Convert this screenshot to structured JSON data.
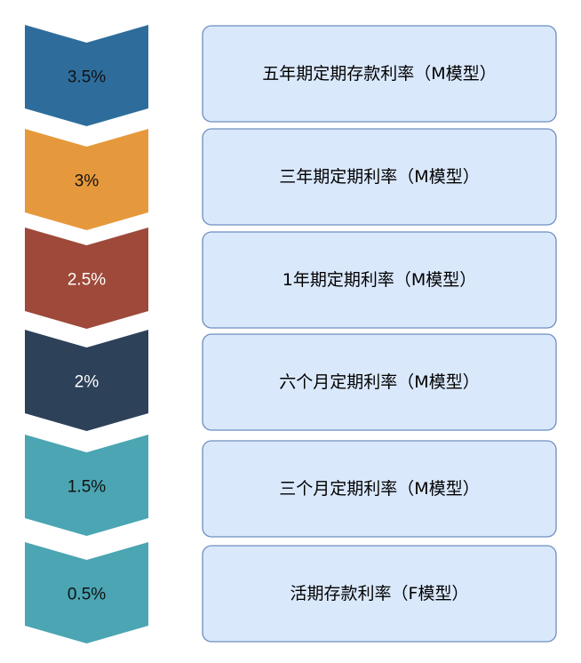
{
  "steps": [
    {
      "rate": "3.5%",
      "label": "五年期定期存款利率（M模型）",
      "color": "#2e6d9b",
      "text_color": "#111111"
    },
    {
      "rate": "3%",
      "label": "三年期定期利率（M模型）",
      "color": "#e6993c",
      "text_color": "#111111"
    },
    {
      "rate": "2.5%",
      "label": "1年期定期利率（M模型）",
      "color": "#9e493a",
      "text_color": "#ffffff"
    },
    {
      "rate": "2%",
      "label": "六个月定期利率（M模型）",
      "color": "#2d4159",
      "text_color": "#ffffff"
    },
    {
      "rate": "1.5%",
      "label": "三个月定期利率（M模型）",
      "color": "#4ba5b3",
      "text_color": "#111111"
    },
    {
      "rate": "0.5%",
      "label": "活期存款利率（F模型）",
      "color": "#4ba5b3",
      "text_color": "#111111"
    }
  ]
}
